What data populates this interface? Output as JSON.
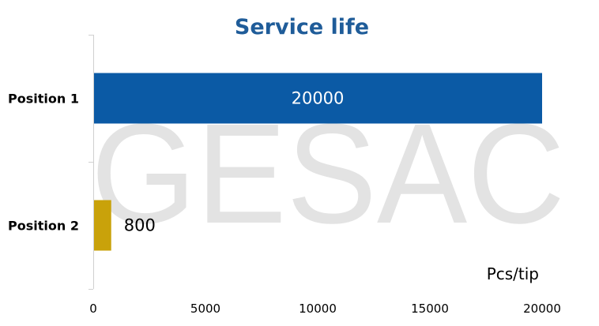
{
  "chart_data": {
    "type": "bar",
    "orientation": "horizontal",
    "title": "Service life",
    "categories": [
      "Position 1",
      "Position 2"
    ],
    "values": [
      20000,
      800
    ],
    "data_labels": [
      "20000",
      "800"
    ],
    "xlim": [
      0,
      20000
    ],
    "xticks": [
      0,
      5000,
      10000,
      15000,
      20000
    ],
    "unit_label": "Pcs/tip",
    "grid": false,
    "legend": "none",
    "watermark": "GESAC",
    "colors": [
      "#0B5AA5",
      "#C9A20A"
    ],
    "title_color": "#1F5C99",
    "data_label_colors": [
      "#FFFFFF",
      "#000000"
    ]
  }
}
